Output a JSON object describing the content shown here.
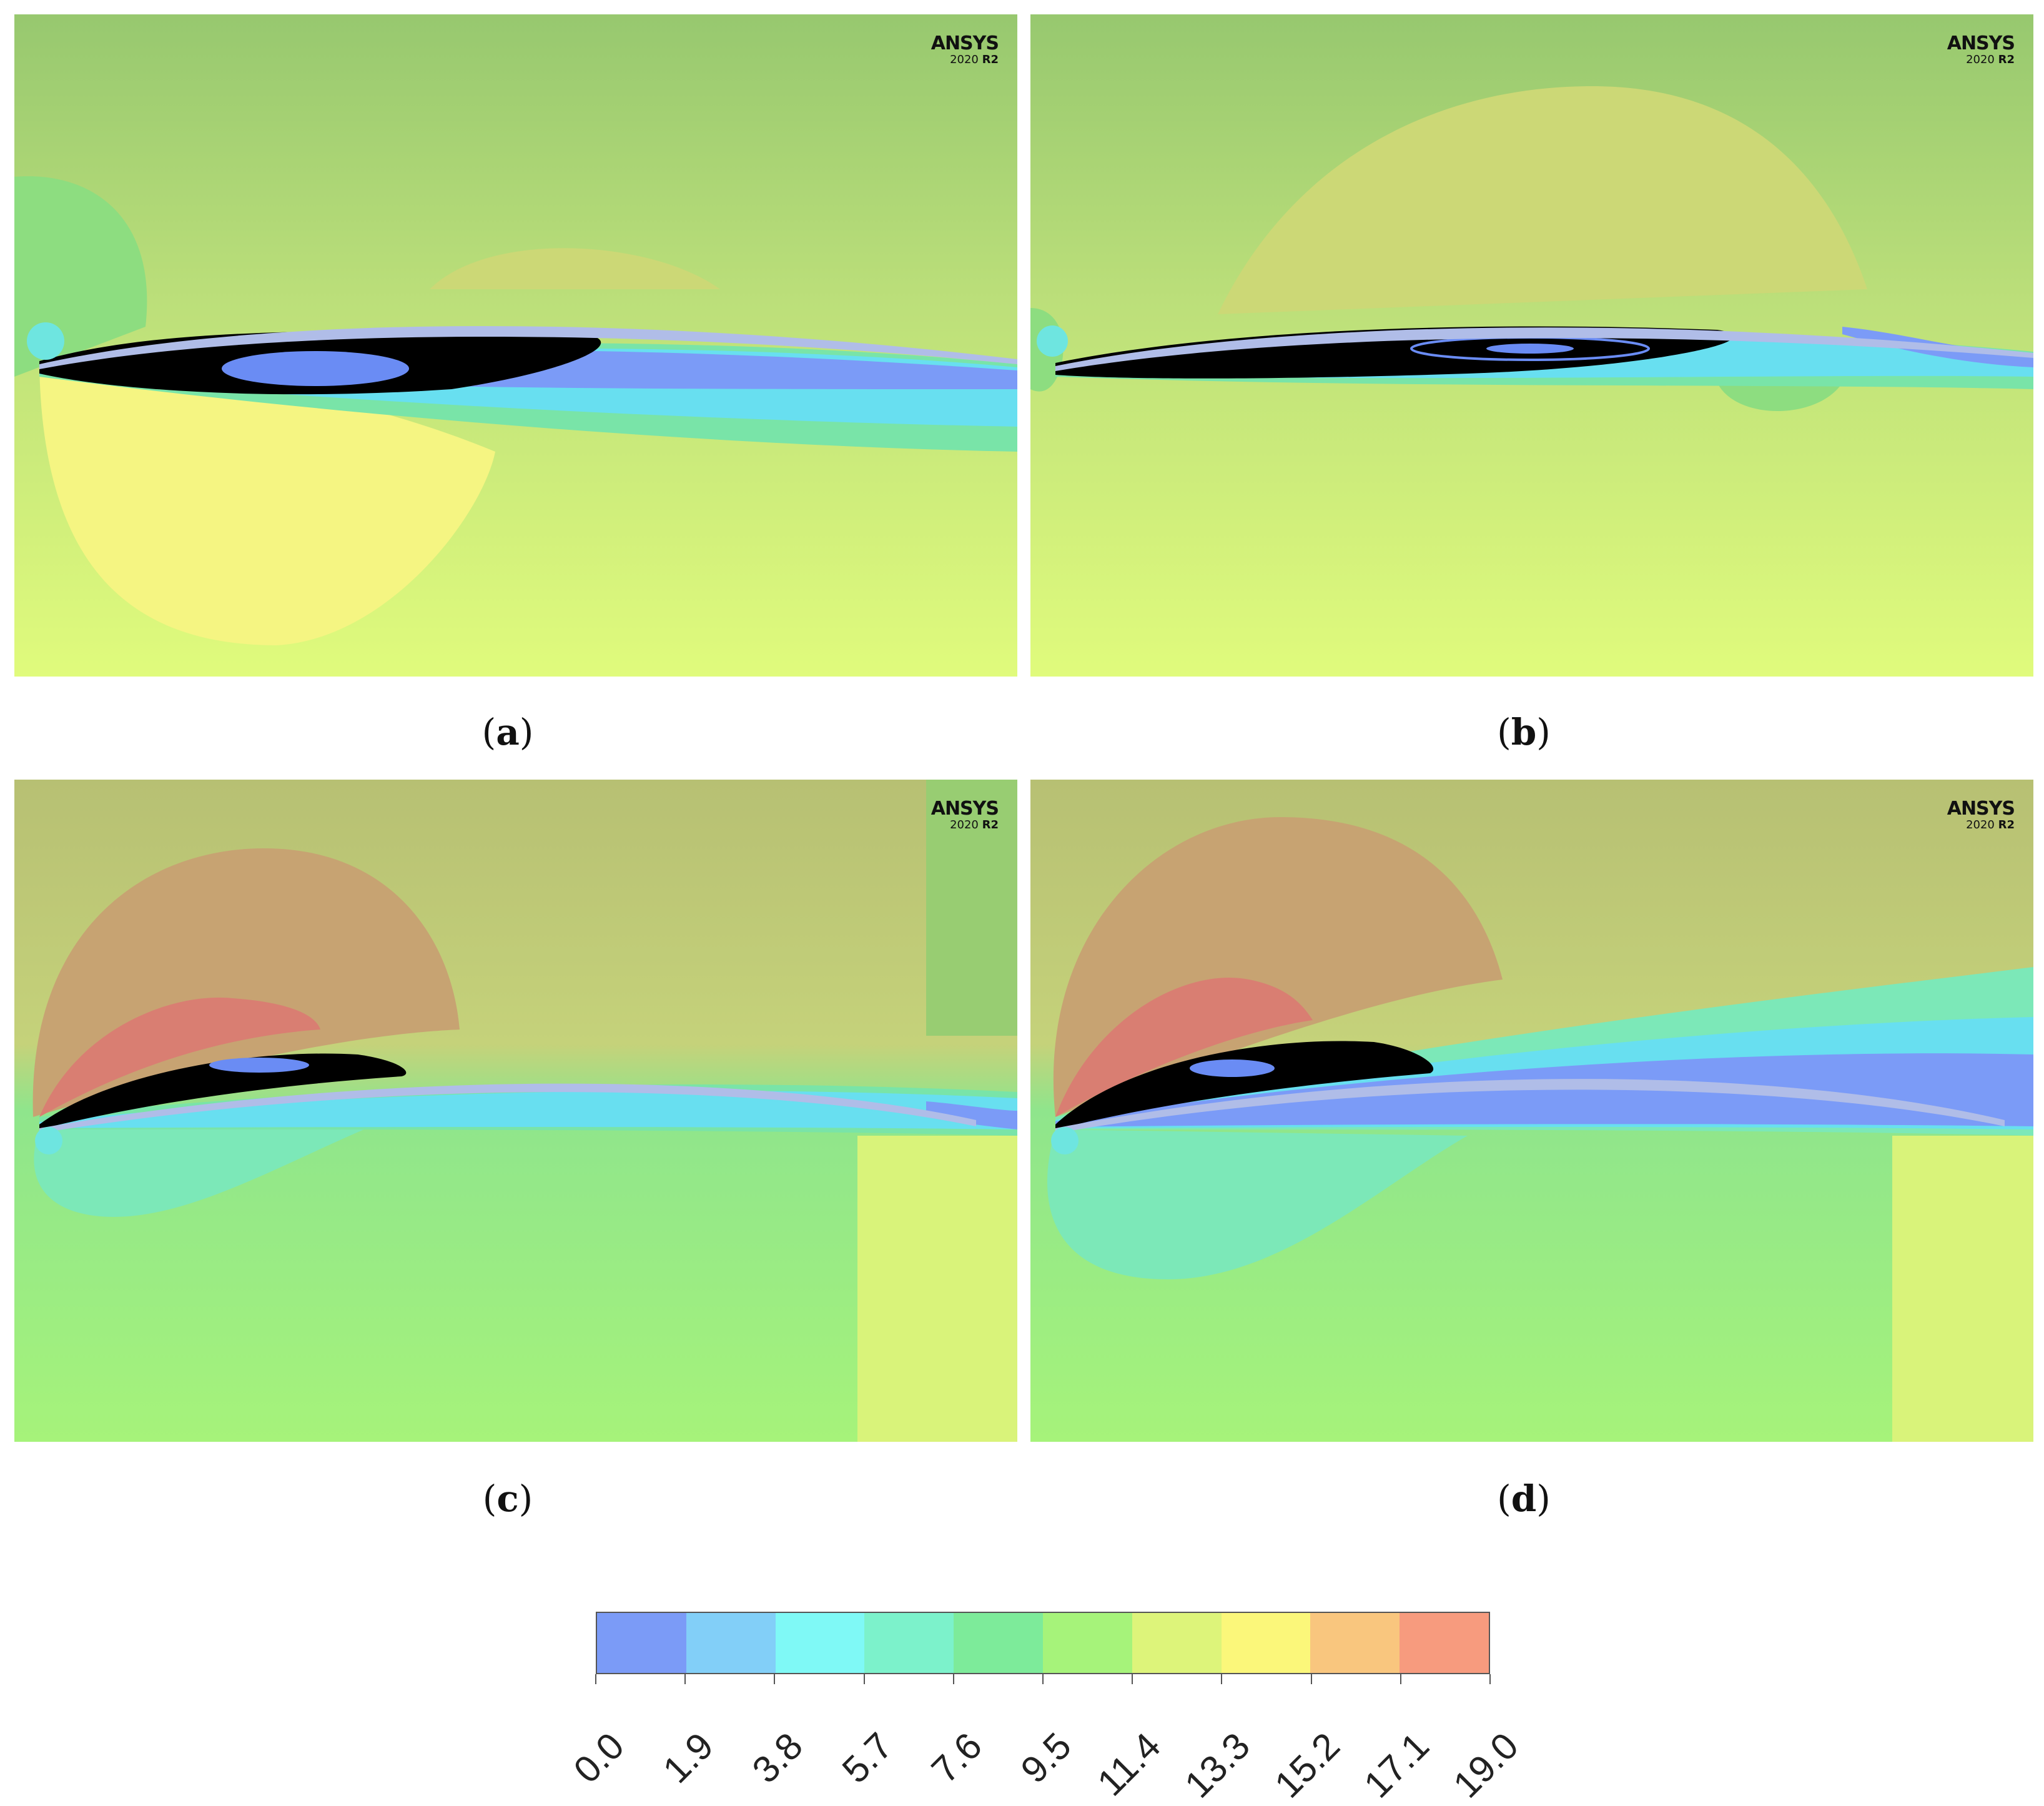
{
  "panels": [
    {
      "id": "a",
      "caption": "a",
      "watermark": {
        "brand": "ANSYS",
        "year": "2020",
        "release": "R2"
      }
    },
    {
      "id": "b",
      "caption": "b",
      "watermark": {
        "brand": "ANSYS",
        "year": "2020",
        "release": "R2"
      }
    },
    {
      "id": "c",
      "caption": "c",
      "watermark": {
        "brand": "ANSYS",
        "year": "2020",
        "release": "R2"
      }
    },
    {
      "id": "d",
      "caption": "d",
      "watermark": {
        "brand": "ANSYS",
        "year": "2020",
        "release": "R2"
      }
    }
  ],
  "colorbar": {
    "ticks": [
      "0.0",
      "1.9",
      "3.8",
      "5.7",
      "7.6",
      "9.5",
      "11.4",
      "13.3",
      "15.2",
      "17.1",
      "19.0"
    ],
    "colors": [
      "#7b9bf7",
      "#82cff8",
      "#7ff9f6",
      "#7cf2cb",
      "#7deb9a",
      "#a6f37a",
      "#ddf47a",
      "#fbf77a",
      "#f9c67e",
      "#f79b7e"
    ]
  },
  "colors": {
    "black_region": "#000000",
    "airfoil": "#b0bde8"
  }
}
